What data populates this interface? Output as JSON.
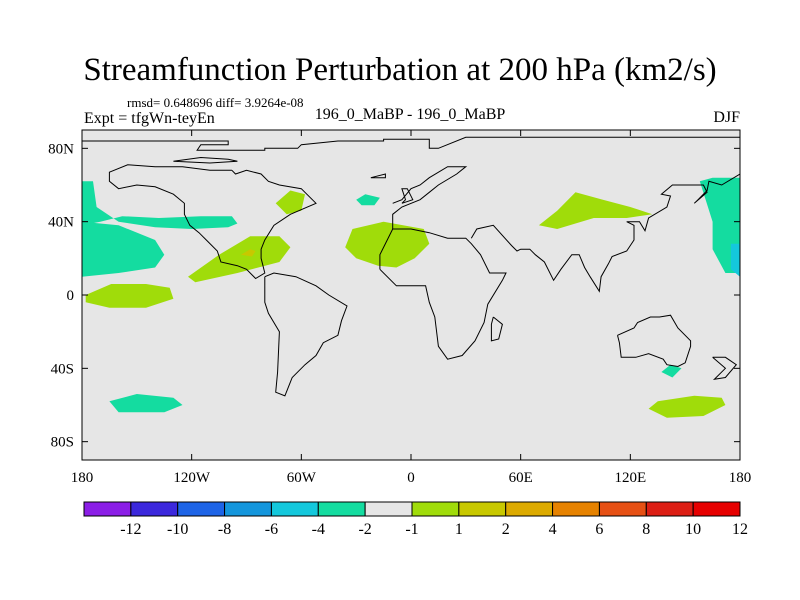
{
  "chart_data": {
    "type": "heatmap",
    "title": "Streamfunction Perturbation at 200 hPa (km2/s)",
    "stats_text": "rmsd= 0.648696 diff= 3.9264e-08",
    "left_label": "Expt = tfgWn-teyEn",
    "center_label": "196_0_MaBP - 196_0_MaBP",
    "right_label": "DJF",
    "xlim": [
      -180,
      180
    ],
    "ylim": [
      -90,
      90
    ],
    "x_ticks": [
      {
        "value": -180,
        "label": "180"
      },
      {
        "value": -120,
        "label": "120W"
      },
      {
        "value": -60,
        "label": "60W"
      },
      {
        "value": 0,
        "label": "0"
      },
      {
        "value": 60,
        "label": "60E"
      },
      {
        "value": 120,
        "label": "120E"
      },
      {
        "value": 180,
        "label": "180"
      }
    ],
    "y_ticks": [
      {
        "value": 80,
        "label": "80N"
      },
      {
        "value": 40,
        "label": "40N"
      },
      {
        "value": 0,
        "label": "0"
      },
      {
        "value": -40,
        "label": "40S"
      },
      {
        "value": -80,
        "label": "80S"
      }
    ],
    "colorbar": {
      "colors": [
        "#8b1ee6",
        "#3c28dc",
        "#1e64e6",
        "#1496dc",
        "#14c8dc",
        "#14dca0",
        "#e6e6e6",
        "#a0dc0a",
        "#c8c800",
        "#dcaa00",
        "#e68200",
        "#e65014",
        "#dc1e14",
        "#e60000"
      ],
      "labels": [
        "-12",
        "-10",
        "-8",
        "-6",
        "-4",
        "-2",
        "-1",
        "1",
        "2",
        "4",
        "6",
        "8",
        "10",
        "12"
      ]
    },
    "background_color": "#e6e6e6",
    "contour_regions": [
      {
        "name": "pacific-north-subtropics-neg",
        "color": "#14dca0",
        "points": [
          [
            -180,
            62
          ],
          [
            -174,
            62
          ],
          [
            -172,
            48
          ],
          [
            -160,
            40
          ],
          [
            -140,
            37
          ],
          [
            -120,
            36
          ],
          [
            -100,
            37
          ],
          [
            -95,
            39
          ],
          [
            -98,
            43
          ],
          [
            -115,
            43
          ],
          [
            -138,
            42
          ],
          [
            -158,
            43
          ],
          [
            -170,
            40
          ],
          [
            -180,
            38
          ]
        ]
      },
      {
        "name": "pacific-north-subtropics-neg-core",
        "color": "#14c8dc",
        "points": [
          [
            -180,
            28
          ],
          [
            -170,
            28
          ],
          [
            -150,
            26
          ],
          [
            -140,
            24
          ],
          [
            -160,
            14
          ],
          [
            -180,
            12
          ]
        ]
      },
      {
        "name": "pacific-equator-neg",
        "color": "#14dca0",
        "points": [
          [
            -180,
            40
          ],
          [
            -160,
            38
          ],
          [
            -140,
            30
          ],
          [
            -135,
            22
          ],
          [
            -140,
            15
          ],
          [
            -160,
            12
          ],
          [
            -180,
            10
          ]
        ]
      },
      {
        "name": "north-america-pos",
        "color": "#a0dc0a",
        "points": [
          [
            -122,
            10
          ],
          [
            -105,
            22
          ],
          [
            -88,
            32
          ],
          [
            -72,
            32
          ],
          [
            -66,
            26
          ],
          [
            -72,
            18
          ],
          [
            -95,
            12
          ],
          [
            -118,
            7
          ]
        ]
      },
      {
        "name": "north-america-pos-core",
        "color": "#c8c800",
        "points": [
          [
            -93,
            22
          ],
          [
            -88,
            25
          ],
          [
            -85,
            24
          ],
          [
            -87,
            21
          ]
        ]
      },
      {
        "name": "eastern-pacific-neg",
        "color": "#a0dc0a",
        "points": [
          [
            -178,
            0
          ],
          [
            -164,
            6
          ],
          [
            -145,
            6
          ],
          [
            -132,
            4
          ],
          [
            -130,
            -2
          ],
          [
            -145,
            -7
          ],
          [
            -165,
            -7
          ],
          [
            -178,
            -4
          ]
        ]
      },
      {
        "name": "atlantic-north-pos",
        "color": "#a0dc0a",
        "points": [
          [
            -74,
            50
          ],
          [
            -66,
            57
          ],
          [
            -58,
            55
          ],
          [
            -60,
            46
          ],
          [
            -68,
            44
          ]
        ]
      },
      {
        "name": "atlantic-small-neg",
        "color": "#14dca0",
        "points": [
          [
            -30,
            52
          ],
          [
            -25,
            55
          ],
          [
            -17,
            53
          ],
          [
            -20,
            49
          ],
          [
            -27,
            49
          ]
        ]
      },
      {
        "name": "saharan-pos",
        "color": "#a0dc0a",
        "points": [
          [
            -36,
            26
          ],
          [
            -32,
            36
          ],
          [
            -15,
            40
          ],
          [
            7,
            36
          ],
          [
            10,
            28
          ],
          [
            2,
            20
          ],
          [
            -8,
            15
          ],
          [
            -18,
            16
          ],
          [
            -30,
            20
          ]
        ]
      },
      {
        "name": "asia-pos",
        "color": "#a0dc0a",
        "points": [
          [
            70,
            38
          ],
          [
            80,
            46
          ],
          [
            90,
            56
          ],
          [
            105,
            52
          ],
          [
            120,
            48
          ],
          [
            132,
            44
          ],
          [
            118,
            42
          ],
          [
            100,
            42
          ],
          [
            80,
            36
          ]
        ]
      },
      {
        "name": "pacific-nw-neg",
        "color": "#14dca0",
        "points": [
          [
            165,
            64
          ],
          [
            180,
            64
          ],
          [
            180,
            12
          ],
          [
            172,
            12
          ],
          [
            165,
            25
          ],
          [
            165,
            40
          ],
          [
            158,
            62
          ]
        ]
      },
      {
        "name": "pacific-nw-neg-core",
        "color": "#14c8dc",
        "points": [
          [
            175,
            28
          ],
          [
            180,
            28
          ],
          [
            180,
            10
          ],
          [
            175,
            14
          ]
        ]
      },
      {
        "name": "indian-south-neg",
        "color": "#14dca0",
        "points": [
          [
            -165,
            -58
          ],
          [
            -150,
            -54
          ],
          [
            -130,
            -56
          ],
          [
            -125,
            -60
          ],
          [
            -135,
            -64
          ],
          [
            -160,
            -64
          ]
        ]
      },
      {
        "name": "south-pacific-neg",
        "color": "#a0dc0a",
        "points": [
          [
            130,
            -62
          ],
          [
            135,
            -58
          ],
          [
            155,
            -55
          ],
          [
            170,
            -56
          ],
          [
            172,
            -60
          ],
          [
            160,
            -66
          ],
          [
            140,
            -67
          ]
        ]
      },
      {
        "name": "south-pacific-small-neg",
        "color": "#14dca0",
        "points": [
          [
            137,
            -42
          ],
          [
            142,
            -38
          ],
          [
            148,
            -40
          ],
          [
            143,
            -45
          ]
        ]
      }
    ],
    "coastlines": [
      [
        [
          -180,
          84
        ],
        [
          -100,
          84
        ],
        [
          -100,
          82
        ],
        [
          -115,
          82
        ],
        [
          -117,
          79
        ],
        [
          -110,
          79
        ],
        [
          -100,
          79
        ],
        [
          -80,
          79
        ],
        [
          -80,
          80
        ],
        [
          -62,
          80
        ],
        [
          -60,
          82
        ],
        [
          -40,
          84
        ],
        [
          -15,
          84
        ],
        [
          -15,
          85
        ],
        [
          10,
          85
        ],
        [
          10,
          80
        ],
        [
          15,
          80
        ],
        [
          30,
          86
        ],
        [
          100,
          86
        ],
        [
          180,
          86
        ]
      ],
      [
        [
          -98,
          68
        ],
        [
          -96,
          66
        ],
        [
          -90,
          68
        ],
        [
          -82,
          66
        ],
        [
          -78,
          62
        ],
        [
          -72,
          60
        ],
        [
          -60,
          58
        ],
        [
          -52,
          50
        ],
        [
          -66,
          44
        ],
        [
          -75,
          38
        ],
        [
          -80,
          30
        ],
        [
          -82,
          25
        ],
        [
          -82,
          20
        ],
        [
          -80,
          12
        ],
        [
          -85,
          9
        ],
        [
          -90,
          14
        ],
        [
          -95,
          16
        ],
        [
          -104,
          18
        ],
        [
          -106,
          24
        ],
        [
          -112,
          30
        ],
        [
          -116,
          34
        ],
        [
          -121,
          38
        ],
        [
          -124,
          44
        ],
        [
          -124,
          50
        ],
        [
          -130,
          55
        ],
        [
          -140,
          59
        ],
        [
          -150,
          60
        ],
        [
          -160,
          58
        ],
        [
          -165,
          62
        ],
        [
          -165,
          67
        ],
        [
          -155,
          71
        ],
        [
          -140,
          70
        ],
        [
          -125,
          70
        ],
        [
          -110,
          68
        ],
        [
          -98,
          68
        ]
      ],
      [
        [
          -80,
          10
        ],
        [
          -75,
          12
        ],
        [
          -63,
          10
        ],
        [
          -52,
          5
        ],
        [
          -45,
          0
        ],
        [
          -35,
          -6
        ],
        [
          -38,
          -14
        ],
        [
          -40,
          -22
        ],
        [
          -48,
          -26
        ],
        [
          -52,
          -33
        ],
        [
          -58,
          -38
        ],
        [
          -65,
          -45
        ],
        [
          -69,
          -55
        ],
        [
          -74,
          -53
        ],
        [
          -73,
          -42
        ],
        [
          -72,
          -20
        ],
        [
          -78,
          -10
        ],
        [
          -80,
          -4
        ],
        [
          -80,
          10
        ]
      ],
      [
        [
          -10,
          36
        ],
        [
          -10,
          44
        ],
        [
          -5,
          48
        ],
        [
          5,
          52
        ],
        [
          10,
          56
        ],
        [
          15,
          60
        ],
        [
          25,
          66
        ],
        [
          30,
          70
        ],
        [
          20,
          70
        ],
        [
          10,
          64
        ],
        [
          5,
          60
        ],
        [
          0,
          58
        ],
        [
          -5,
          52
        ],
        [
          -10,
          50
        ]
      ],
      [
        [
          -17,
          14
        ],
        [
          -8,
          5
        ],
        [
          8,
          5
        ],
        [
          10,
          -4
        ],
        [
          13,
          -12
        ],
        [
          15,
          -28
        ],
        [
          20,
          -35
        ],
        [
          28,
          -33
        ],
        [
          35,
          -25
        ],
        [
          40,
          -15
        ],
        [
          42,
          -5
        ],
        [
          50,
          8
        ],
        [
          52,
          12
        ],
        [
          43,
          12
        ],
        [
          38,
          22
        ],
        [
          33,
          28
        ],
        [
          30,
          31
        ],
        [
          20,
          31
        ],
        [
          10,
          34
        ],
        [
          0,
          36
        ],
        [
          -10,
          36
        ],
        [
          -17,
          22
        ],
        [
          -17,
          14
        ]
      ],
      [
        [
          33,
          31
        ],
        [
          36,
          36
        ],
        [
          45,
          38
        ],
        [
          55,
          27
        ],
        [
          58,
          24
        ],
        [
          60,
          25
        ],
        [
          65,
          25
        ],
        [
          68,
          22
        ],
        [
          73,
          18
        ],
        [
          78,
          8
        ],
        [
          82,
          14
        ],
        [
          88,
          22
        ],
        [
          92,
          22
        ],
        [
          95,
          15
        ],
        [
          98,
          10
        ],
        [
          103,
          2
        ],
        [
          104,
          10
        ],
        [
          108,
          17
        ],
        [
          110,
          21
        ],
        [
          118,
          24
        ],
        [
          122,
          30
        ],
        [
          122,
          38
        ],
        [
          118,
          40
        ],
        [
          125,
          40
        ],
        [
          128,
          35
        ],
        [
          130,
          42
        ],
        [
          140,
          48
        ],
        [
          142,
          54
        ],
        [
          137,
          55
        ],
        [
          143,
          60
        ],
        [
          152,
          60
        ],
        [
          160,
          60
        ],
        [
          162,
          56
        ],
        [
          155,
          50
        ],
        [
          157,
          52
        ],
        [
          162,
          57
        ],
        [
          163,
          62
        ],
        [
          170,
          60
        ],
        [
          180,
          66
        ]
      ],
      [
        [
          113,
          -22
        ],
        [
          114,
          -26
        ],
        [
          115,
          -34
        ],
        [
          123,
          -34
        ],
        [
          130,
          -32
        ],
        [
          138,
          -35
        ],
        [
          140,
          -38
        ],
        [
          146,
          -39
        ],
        [
          150,
          -37
        ],
        [
          153,
          -28
        ],
        [
          153,
          -25
        ],
        [
          146,
          -18
        ],
        [
          142,
          -11
        ],
        [
          136,
          -12
        ],
        [
          131,
          -12
        ],
        [
          124,
          -15
        ],
        [
          122,
          -18
        ],
        [
          113,
          -22
        ]
      ],
      [
        [
          -5,
          50
        ],
        [
          -3,
          52
        ],
        [
          -5,
          58
        ],
        [
          -2,
          58
        ],
        [
          1,
          52
        ],
        [
          -5,
          50
        ]
      ],
      [
        [
          -130,
          73
        ],
        [
          -115,
          75
        ],
        [
          -100,
          74
        ],
        [
          -95,
          73
        ],
        [
          -110,
          72
        ],
        [
          -130,
          73
        ]
      ],
      [
        [
          -22,
          64
        ],
        [
          -14,
          66
        ],
        [
          -14,
          64
        ],
        [
          -22,
          64
        ]
      ],
      [
        [
          165,
          -34
        ],
        [
          172,
          -34
        ],
        [
          178,
          -38
        ],
        [
          172,
          -45
        ],
        [
          166,
          -46
        ],
        [
          172,
          -40
        ],
        [
          165,
          -34
        ]
      ],
      [
        [
          45,
          -12
        ],
        [
          50,
          -16
        ],
        [
          48,
          -24
        ],
        [
          44,
          -25
        ],
        [
          44,
          -16
        ],
        [
          45,
          -12
        ]
      ]
    ]
  }
}
